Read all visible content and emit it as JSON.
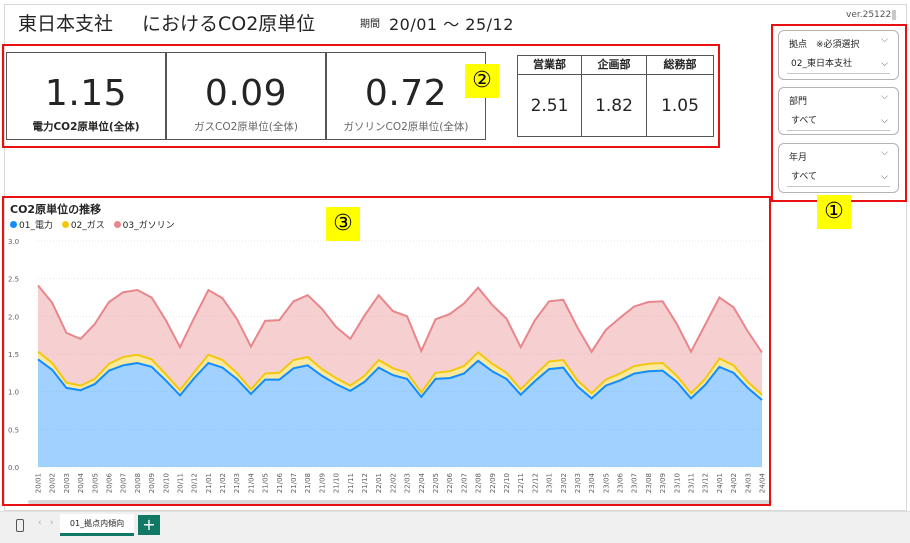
{
  "header": {
    "title_branch": "東日本支社",
    "title_suffix": "におけるCO2原単位",
    "period_label": "期間",
    "period_value": "20/01 ～ 25/12",
    "version": "ver.251221"
  },
  "badges": [
    "①",
    "②",
    "③"
  ],
  "kpis": [
    {
      "value": "1.15",
      "label": "電力CO2原単位(全体)"
    },
    {
      "value": "0.09",
      "label": "ガスCO2原単位(全体)"
    },
    {
      "value": "0.72",
      "label": "ガソリンCO2原単位(全体)"
    }
  ],
  "departments": [
    {
      "name": "営業部",
      "value": "2.51"
    },
    {
      "name": "企画部",
      "value": "1.82"
    },
    {
      "name": "総務部",
      "value": "1.05"
    }
  ],
  "slicers": [
    {
      "label": "拠点　※必須選択",
      "value": "02_東日本支社"
    },
    {
      "label": "部門",
      "value": "すべて"
    },
    {
      "label": "年月",
      "value": "すべて"
    }
  ],
  "tabs": {
    "active": "01_拠点内傾向",
    "add": "+"
  },
  "icons": {
    "phone": "phone-icon",
    "prev": "chevron-left-icon",
    "next": "chevron-right-icon",
    "chevron": "chevron-down-icon"
  },
  "colors": {
    "red_outline": "#e81010",
    "badge": "#ffff00",
    "electric": "#118dff",
    "gas": "#f2c80f",
    "gasoline": "#e8868b",
    "tab_accent": "#117865"
  },
  "chart_data": {
    "type": "area",
    "stacked": true,
    "title": "CO2原単位の推移",
    "ylim": [
      0,
      3.0
    ],
    "yticks": [
      "0.0",
      "0.5",
      "1.0",
      "1.5",
      "2.0",
      "2.5",
      "3.0"
    ],
    "grid": true,
    "legend_position": "top-left",
    "x": [
      "20/01",
      "20/02",
      "20/03",
      "20/04",
      "20/05",
      "20/06",
      "20/07",
      "20/08",
      "20/09",
      "20/10",
      "20/11",
      "20/12",
      "21/01",
      "21/02",
      "21/03",
      "21/04",
      "21/05",
      "21/06",
      "21/07",
      "21/08",
      "21/09",
      "21/10",
      "21/11",
      "21/12",
      "22/01",
      "22/02",
      "22/03",
      "22/04",
      "22/05",
      "22/06",
      "22/07",
      "22/08",
      "22/09",
      "22/10",
      "22/11",
      "22/12",
      "23/01",
      "23/02",
      "23/03",
      "23/04",
      "23/05",
      "23/06",
      "23/07",
      "23/08",
      "23/09",
      "23/10",
      "23/11",
      "23/12",
      "24/01",
      "24/02",
      "24/03",
      "24/04"
    ],
    "series": [
      {
        "name": "01_電力",
        "color": "#118dff",
        "values": [
          1.43,
          1.29,
          1.05,
          1.02,
          1.1,
          1.28,
          1.35,
          1.38,
          1.33,
          1.15,
          0.95,
          1.18,
          1.38,
          1.32,
          1.17,
          0.97,
          1.16,
          1.16,
          1.31,
          1.35,
          1.21,
          1.1,
          1.01,
          1.13,
          1.32,
          1.22,
          1.17,
          0.93,
          1.17,
          1.18,
          1.24,
          1.41,
          1.27,
          1.17,
          0.96,
          1.14,
          1.3,
          1.32,
          1.07,
          0.91,
          1.08,
          1.15,
          1.24,
          1.27,
          1.28,
          1.13,
          0.91,
          1.09,
          1.33,
          1.25,
          1.05,
          0.89
        ]
      },
      {
        "name": "02_ガス",
        "color": "#f2c80f",
        "values": [
          0.1,
          0.09,
          0.07,
          0.06,
          0.07,
          0.09,
          0.11,
          0.11,
          0.1,
          0.08,
          0.07,
          0.08,
          0.11,
          0.1,
          0.08,
          0.06,
          0.08,
          0.09,
          0.11,
          0.11,
          0.09,
          0.08,
          0.07,
          0.08,
          0.1,
          0.09,
          0.08,
          0.06,
          0.08,
          0.09,
          0.1,
          0.11,
          0.1,
          0.08,
          0.07,
          0.08,
          0.1,
          0.1,
          0.08,
          0.07,
          0.08,
          0.09,
          0.1,
          0.1,
          0.1,
          0.08,
          0.07,
          0.08,
          0.11,
          0.1,
          0.08,
          0.07
        ]
      },
      {
        "name": "03_ガソリン",
        "color": "#e8868b",
        "values": [
          0.88,
          0.8,
          0.66,
          0.62,
          0.73,
          0.82,
          0.86,
          0.86,
          0.82,
          0.72,
          0.57,
          0.72,
          0.86,
          0.82,
          0.72,
          0.57,
          0.7,
          0.7,
          0.78,
          0.82,
          0.8,
          0.68,
          0.62,
          0.8,
          0.86,
          0.76,
          0.75,
          0.55,
          0.71,
          0.76,
          0.83,
          0.86,
          0.78,
          0.72,
          0.56,
          0.73,
          0.8,
          0.8,
          0.7,
          0.55,
          0.66,
          0.74,
          0.79,
          0.82,
          0.82,
          0.69,
          0.55,
          0.72,
          0.81,
          0.77,
          0.67,
          0.56
        ]
      }
    ]
  }
}
